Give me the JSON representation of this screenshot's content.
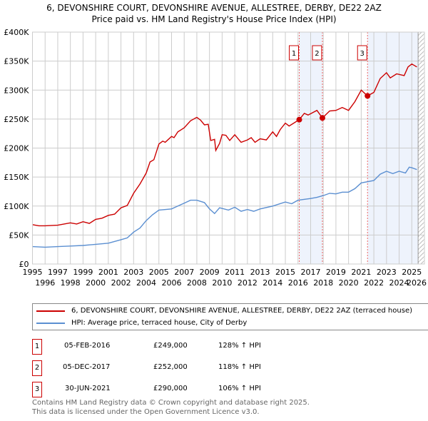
{
  "title": "6, DEVONSHIRE COURT, DEVONSHIRE AVENUE, ALLESTREE, DERBY, DE22 2AZ",
  "subtitle": "Price paid vs. HM Land Registry's House Price Index (HPI)",
  "chart_data": {
    "type": "line",
    "xlim": [
      1995,
      2026
    ],
    "ylim": [
      0,
      400000
    ],
    "yticks": [
      {
        "v": 0,
        "label": "£0"
      },
      {
        "v": 50000,
        "label": "£50K"
      },
      {
        "v": 100000,
        "label": "£100K"
      },
      {
        "v": 150000,
        "label": "£150K"
      },
      {
        "v": 200000,
        "label": "£200K"
      },
      {
        "v": 250000,
        "label": "£250K"
      },
      {
        "v": 300000,
        "label": "£300K"
      },
      {
        "v": 350000,
        "label": "£350K"
      },
      {
        "v": 400000,
        "label": "£400K"
      }
    ],
    "xticks": [
      "1995",
      "1996",
      "1997",
      "1998",
      "1999",
      "2000",
      "2001",
      "2002",
      "2003",
      "2004",
      "2005",
      "2006",
      "2007",
      "2008",
      "2009",
      "2010",
      "2011",
      "2012",
      "2013",
      "2014",
      "2015",
      "2016",
      "2017",
      "2018",
      "2019",
      "2020",
      "2021",
      "2022",
      "2023",
      "2024",
      "2025",
      "2026"
    ],
    "shaded": [
      [
        2016.1,
        2017.93
      ],
      [
        2021.5,
        2025.5
      ]
    ],
    "hatch_from": 2025.5,
    "series": [
      {
        "name": "6, DEVONSHIRE COURT, DEVONSHIRE AVENUE, ALLESTREE, DERBY, DE22 2AZ (terraced house)",
        "color": "#cc0000",
        "x": [
          1995,
          1995.5,
          1996,
          1997,
          1998,
          1998.5,
          1999,
          1999.5,
          2000,
          2000.5,
          2001,
          2001.5,
          2002,
          2002.5,
          2003,
          2003.5,
          2004,
          2004.3,
          2004.6,
          2005,
          2005.3,
          2005.5,
          2006,
          2006.2,
          2006.5,
          2007,
          2007.5,
          2008,
          2008.3,
          2008.6,
          2008.9,
          2009.1,
          2009.4,
          2009.5,
          2009.8,
          2010,
          2010.3,
          2010.6,
          2011,
          2011.5,
          2012,
          2012.3,
          2012.6,
          2013,
          2013.5,
          2014,
          2014.3,
          2014.6,
          2015,
          2015.3,
          2016.1,
          2016.5,
          2016.8,
          2017.5,
          2017.93,
          2018.5,
          2019,
          2019.5,
          2020,
          2020.5,
          2021,
          2021.5,
          2022,
          2022.5,
          2023,
          2023.3,
          2023.8,
          2024.4,
          2024.7,
          2025,
          2025.4
        ],
        "y": [
          68000,
          66000,
          66000,
          67000,
          71000,
          69000,
          73000,
          70000,
          77000,
          79000,
          84000,
          86000,
          97000,
          101000,
          122000,
          138000,
          157000,
          176000,
          180000,
          207000,
          212000,
          210000,
          220000,
          218000,
          228000,
          235000,
          247000,
          253000,
          248000,
          240000,
          241000,
          213000,
          215000,
          196000,
          208000,
          223000,
          222000,
          213000,
          223000,
          210000,
          214000,
          218000,
          210000,
          216000,
          214000,
          228000,
          220000,
          232000,
          243000,
          238000,
          249000,
          260000,
          257000,
          265000,
          252000,
          264000,
          265000,
          270000,
          265000,
          280000,
          300000,
          290000,
          296000,
          320000,
          330000,
          321000,
          328000,
          325000,
          340000,
          345000,
          340000
        ]
      },
      {
        "name": "HPI: Average price, terraced house, City of Derby",
        "color": "#5b8fd1",
        "x": [
          1995,
          1996,
          1997,
          1998,
          1999,
          2000,
          2001,
          2002,
          2002.5,
          2003,
          2003.5,
          2004,
          2004.5,
          2005,
          2006,
          2006.5,
          2007,
          2007.5,
          2008,
          2008.6,
          2009,
          2009.4,
          2009.8,
          2010.5,
          2011,
          2011.5,
          2012,
          2012.5,
          2013,
          2014,
          2015,
          2015.5,
          2016,
          2017,
          2017.5,
          2018,
          2018.5,
          2019,
          2019.5,
          2020,
          2020.5,
          2021,
          2022,
          2022.5,
          2023,
          2023.5,
          2024,
          2024.5,
          2024.8,
          2025,
          2025.4
        ],
        "y": [
          30000,
          29000,
          30000,
          31000,
          32000,
          34000,
          36000,
          42000,
          45000,
          55000,
          62000,
          75000,
          85000,
          93000,
          95000,
          100000,
          105000,
          110000,
          110000,
          106000,
          95000,
          87000,
          97000,
          93000,
          98000,
          91000,
          94000,
          91000,
          95000,
          100000,
          107000,
          104000,
          110000,
          113000,
          115000,
          118000,
          122000,
          121000,
          124000,
          124000,
          130000,
          140000,
          144000,
          155000,
          160000,
          156000,
          160000,
          157000,
          167000,
          166000,
          163000
        ]
      }
    ],
    "sales": [
      {
        "label": "1",
        "x": 2016.1,
        "y": 249000
      },
      {
        "label": "2",
        "x": 2017.93,
        "y": 252000
      },
      {
        "label": "3",
        "x": 2021.5,
        "y": 290000
      }
    ]
  },
  "legend": {
    "red": "6, DEVONSHIRE COURT, DEVONSHIRE AVENUE, ALLESTREE, DERBY, DE22 2AZ (terraced house)",
    "blue": "HPI: Average price, terraced house, City of Derby"
  },
  "table": [
    {
      "n": "1",
      "date": "05-FEB-2016",
      "price": "£249,000",
      "hpi": "128% ↑ HPI"
    },
    {
      "n": "2",
      "date": "05-DEC-2017",
      "price": "£252,000",
      "hpi": "118% ↑ HPI"
    },
    {
      "n": "3",
      "date": "30-JUN-2021",
      "price": "£290,000",
      "hpi": "106% ↑ HPI"
    }
  ],
  "footer": [
    "Contains HM Land Registry data © Crown copyright and database right 2025.",
    "This data is licensed under the Open Government Licence v3.0."
  ]
}
